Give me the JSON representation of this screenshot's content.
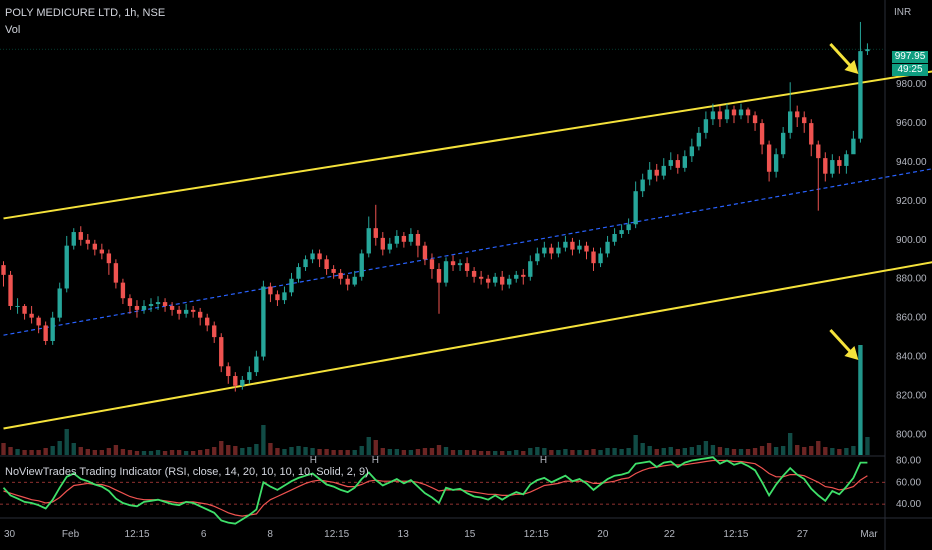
{
  "header": {
    "title": "POLY MEDICURE LTD, 1h, NSE",
    "volume_label": "Vol",
    "currency": "INR"
  },
  "price_tag": {
    "price": "997.95",
    "countdown": "49:25"
  },
  "indicator": {
    "title": "NoViewTrades Trading Indicator (RSI, close, 14, 20, 10, 10, 10, Solid, 2, 9)",
    "markers": [
      "H",
      "H",
      "H"
    ]
  },
  "chart_data": {
    "type": "candlestick",
    "price_axis": {
      "ticks": [
        980,
        960,
        940,
        920,
        900,
        880,
        860,
        840,
        820,
        800
      ],
      "range": [
        793,
        1013
      ]
    },
    "rsi_axis": {
      "ticks": [
        80,
        60,
        40
      ],
      "range": [
        30,
        85
      ]
    },
    "x_ticks": [
      "30",
      "Feb",
      "12:15",
      "6",
      "8",
      "12:15",
      "13",
      "15",
      "12:15",
      "20",
      "22",
      "12:15",
      "27",
      "Mar"
    ],
    "series": [
      {
        "name": "price",
        "values": [
          [
            887,
            882,
            889,
            876
          ],
          [
            882,
            866,
            884,
            864
          ],
          [
            866,
            866,
            870,
            862
          ],
          [
            866,
            862,
            867,
            859
          ],
          [
            862,
            860,
            866,
            857
          ],
          [
            860,
            856,
            861,
            852
          ],
          [
            856,
            848,
            858,
            846
          ],
          [
            848,
            860,
            863,
            846
          ],
          [
            860,
            875,
            878,
            858
          ],
          [
            875,
            897,
            902,
            873
          ],
          [
            897,
            904,
            906,
            895
          ],
          [
            904,
            900,
            907,
            897
          ],
          [
            900,
            898,
            903,
            895
          ],
          [
            898,
            895,
            900,
            892
          ],
          [
            895,
            893,
            898,
            890
          ],
          [
            893,
            888,
            895,
            882
          ],
          [
            888,
            878,
            890,
            875
          ],
          [
            878,
            870,
            880,
            867
          ],
          [
            870,
            866,
            872,
            862
          ],
          [
            866,
            864,
            869,
            860
          ],
          [
            864,
            866,
            869,
            862
          ],
          [
            866,
            867,
            870,
            863
          ],
          [
            867,
            868,
            871,
            864
          ],
          [
            868,
            866,
            870,
            863
          ],
          [
            866,
            864,
            868,
            861
          ],
          [
            864,
            862,
            866,
            859
          ],
          [
            862,
            864,
            867,
            860
          ],
          [
            864,
            863,
            866,
            860
          ],
          [
            863,
            860,
            865,
            856
          ],
          [
            860,
            856,
            862,
            853
          ],
          [
            856,
            850,
            858,
            847
          ],
          [
            850,
            835,
            852,
            832
          ],
          [
            835,
            830,
            837,
            826
          ],
          [
            830,
            825,
            832,
            822
          ],
          [
            825,
            828,
            830,
            823
          ],
          [
            828,
            832,
            835,
            826
          ],
          [
            832,
            840,
            843,
            830
          ],
          [
            840,
            876,
            879,
            838
          ],
          [
            876,
            872,
            878,
            868
          ],
          [
            872,
            869,
            874,
            866
          ],
          [
            869,
            873,
            876,
            867
          ],
          [
            873,
            880,
            883,
            871
          ],
          [
            880,
            886,
            888,
            878
          ],
          [
            886,
            890,
            892,
            884
          ],
          [
            890,
            893,
            895,
            888
          ],
          [
            893,
            890,
            895,
            886
          ],
          [
            890,
            885,
            892,
            882
          ],
          [
            885,
            883,
            887,
            880
          ],
          [
            883,
            880,
            885,
            877
          ],
          [
            880,
            877,
            882,
            874
          ],
          [
            877,
            881,
            884,
            876
          ],
          [
            881,
            893,
            895,
            879
          ],
          [
            893,
            906,
            912,
            891
          ],
          [
            906,
            901,
            918,
            897
          ],
          [
            901,
            895,
            904,
            892
          ],
          [
            895,
            898,
            901,
            893
          ],
          [
            898,
            902,
            905,
            896
          ],
          [
            902,
            899,
            904,
            896
          ],
          [
            899,
            903,
            906,
            897
          ],
          [
            903,
            897,
            905,
            891
          ],
          [
            897,
            890,
            899,
            887
          ],
          [
            890,
            885,
            893,
            880
          ],
          [
            885,
            878,
            888,
            862
          ],
          [
            878,
            889,
            891,
            876
          ],
          [
            889,
            887,
            892,
            884
          ],
          [
            887,
            888,
            890,
            884
          ],
          [
            888,
            884,
            891,
            881
          ],
          [
            884,
            881,
            886,
            878
          ],
          [
            881,
            880,
            884,
            877
          ],
          [
            880,
            878,
            882,
            875
          ],
          [
            878,
            881,
            883,
            876
          ],
          [
            881,
            877,
            884,
            874
          ],
          [
            877,
            880,
            882,
            875
          ],
          [
            880,
            882,
            884,
            878
          ],
          [
            882,
            881,
            885,
            877
          ],
          [
            881,
            889,
            892,
            879
          ],
          [
            889,
            893,
            896,
            887
          ],
          [
            893,
            896,
            899,
            891
          ],
          [
            896,
            893,
            898,
            890
          ],
          [
            893,
            896,
            899,
            891
          ],
          [
            896,
            899,
            902,
            894
          ],
          [
            899,
            895,
            901,
            892
          ],
          [
            895,
            897,
            900,
            893
          ],
          [
            897,
            894,
            899,
            890
          ],
          [
            894,
            888,
            896,
            884
          ],
          [
            888,
            893,
            896,
            886
          ],
          [
            893,
            899,
            902,
            891
          ],
          [
            899,
            903,
            906,
            897
          ],
          [
            903,
            905,
            908,
            901
          ],
          [
            905,
            908,
            911,
            903
          ],
          [
            908,
            925,
            930,
            906
          ],
          [
            925,
            931,
            934,
            922
          ],
          [
            931,
            936,
            940,
            928
          ],
          [
            936,
            933,
            939,
            930
          ],
          [
            933,
            938,
            942,
            931
          ],
          [
            938,
            941,
            945,
            936
          ],
          [
            941,
            937,
            944,
            934
          ],
          [
            937,
            943,
            946,
            935
          ],
          [
            943,
            948,
            952,
            940
          ],
          [
            948,
            955,
            958,
            946
          ],
          [
            955,
            962,
            966,
            952
          ],
          [
            962,
            966,
            970,
            959
          ],
          [
            966,
            962,
            969,
            958
          ],
          [
            962,
            967,
            970,
            960
          ],
          [
            967,
            964,
            969,
            960
          ],
          [
            964,
            967,
            970,
            962
          ],
          [
            967,
            964,
            968,
            960
          ],
          [
            964,
            960,
            966,
            956
          ],
          [
            960,
            949,
            962,
            944
          ],
          [
            949,
            935,
            951,
            930
          ],
          [
            935,
            944,
            947,
            932
          ],
          [
            944,
            955,
            958,
            942
          ],
          [
            955,
            966,
            981,
            952
          ],
          [
            966,
            963,
            969,
            958
          ],
          [
            963,
            960,
            966,
            955
          ],
          [
            960,
            949,
            962,
            943
          ],
          [
            949,
            942,
            951,
            915
          ],
          [
            942,
            934,
            945,
            930
          ],
          [
            934,
            941,
            944,
            932
          ],
          [
            941,
            938,
            943,
            934
          ],
          [
            938,
            944,
            946,
            934
          ],
          [
            944,
            952,
            956,
            946
          ],
          [
            952,
            997,
            1012,
            950
          ],
          [
            997,
            998,
            1001,
            995
          ]
        ]
      },
      {
        "name": "volume",
        "values": [
          12,
          8,
          6,
          5,
          5,
          5,
          7,
          9,
          14,
          26,
          12,
          8,
          6,
          5,
          5,
          7,
          10,
          6,
          5,
          4,
          4,
          4,
          5,
          4,
          5,
          5,
          4,
          4,
          5,
          6,
          8,
          14,
          10,
          9,
          7,
          8,
          11,
          30,
          12,
          7,
          6,
          8,
          9,
          8,
          7,
          6,
          6,
          5,
          5,
          5,
          5,
          9,
          18,
          15,
          7,
          6,
          6,
          5,
          5,
          6,
          7,
          7,
          10,
          8,
          5,
          5,
          5,
          5,
          4,
          4,
          4,
          4,
          4,
          5,
          4,
          7,
          8,
          7,
          5,
          5,
          6,
          5,
          5,
          5,
          6,
          5,
          7,
          7,
          6,
          7,
          20,
          12,
          9,
          6,
          7,
          8,
          6,
          7,
          8,
          10,
          14,
          10,
          8,
          7,
          6,
          6,
          6,
          7,
          9,
          12,
          8,
          9,
          22,
          10,
          8,
          9,
          14,
          8,
          7,
          6,
          7,
          9,
          110,
          18
        ]
      },
      {
        "name": "RSI",
        "values": [
          55,
          48,
          45,
          42,
          41,
          39,
          36,
          44,
          55,
          65,
          68,
          63,
          61,
          58,
          56,
          52,
          45,
          41,
          39,
          38,
          42,
          43,
          44,
          42,
          40,
          39,
          42,
          41,
          38,
          35,
          32,
          25,
          23,
          22,
          26,
          30,
          35,
          60,
          56,
          53,
          57,
          61,
          64,
          66,
          68,
          63,
          58,
          56,
          53,
          51,
          55,
          63,
          69,
          62,
          57,
          60,
          63,
          59,
          62,
          56,
          50,
          46,
          41,
          55,
          53,
          54,
          50,
          47,
          46,
          44,
          48,
          44,
          48,
          51,
          49,
          58,
          62,
          64,
          60,
          63,
          66,
          61,
          63,
          59,
          53,
          58,
          63,
          66,
          67,
          69,
          77,
          78,
          79,
          74,
          78,
          79,
          74,
          78,
          80,
          81,
          82,
          83,
          77,
          80,
          76,
          78,
          75,
          71,
          60,
          48,
          58,
          66,
          73,
          67,
          63,
          54,
          48,
          43,
          52,
          49,
          56,
          64,
          78,
          78
        ]
      },
      {
        "name": "RSI signal",
        "values": [
          52,
          50,
          48,
          46,
          44,
          43,
          41,
          42,
          46,
          52,
          57,
          58,
          59,
          58,
          58,
          56,
          53,
          50,
          47,
          45,
          44,
          44,
          44,
          43,
          42,
          41,
          42,
          42,
          41,
          40,
          38,
          35,
          32,
          30,
          29,
          30,
          31,
          39,
          44,
          47,
          50,
          53,
          56,
          59,
          61,
          62,
          61,
          60,
          58,
          56,
          56,
          58,
          61,
          62,
          61,
          61,
          61,
          61,
          61,
          60,
          58,
          55,
          52,
          53,
          53,
          53,
          52,
          51,
          50,
          49,
          49,
          48,
          48,
          49,
          49,
          51,
          54,
          57,
          58,
          59,
          61,
          61,
          61,
          61,
          59,
          59,
          60,
          61,
          63,
          64,
          68,
          71,
          73,
          74,
          75,
          76,
          76,
          76,
          77,
          78,
          79,
          80,
          80,
          80,
          79,
          79,
          78,
          77,
          73,
          68,
          65,
          65,
          67,
          67,
          66,
          63,
          60,
          56,
          55,
          53,
          54,
          56,
          62,
          66
        ]
      }
    ],
    "upper_channel": [
      [
        0,
        911
      ],
      [
        133,
        987
      ]
    ],
    "mid_channel": [
      [
        0,
        851
      ],
      [
        133,
        937
      ]
    ],
    "lower_channel": [
      [
        0,
        803
      ],
      [
        133,
        889
      ]
    ],
    "rsi_bands": [
      60,
      40
    ],
    "colors": {
      "up": "#26a69a",
      "down": "#ef5350",
      "channel": "#f5e23b",
      "mid": "#2962ff",
      "rsi": "#3fe06a",
      "signal": "#ef5350",
      "arrow": "#f5e23b"
    }
  }
}
